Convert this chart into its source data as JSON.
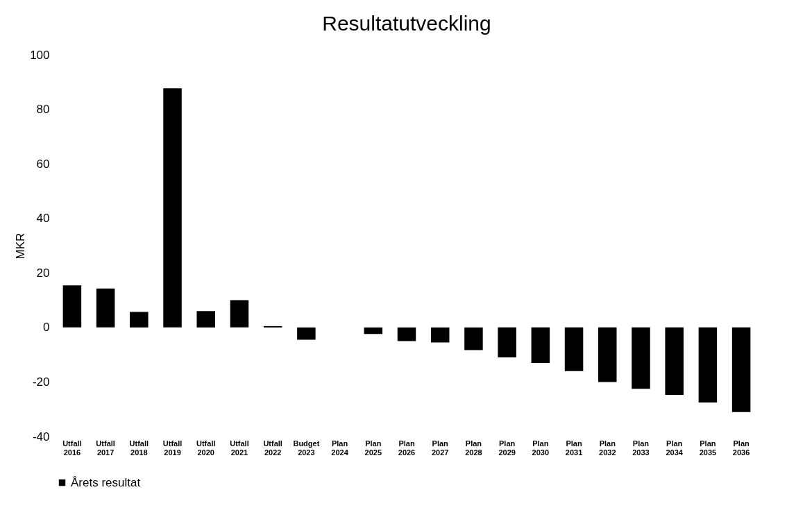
{
  "chart_data": {
    "type": "bar",
    "title": "Resultatutveckling",
    "ylabel": "MKR",
    "categories": [
      "Utfall 2016",
      "Utfall 2017",
      "Utfall 2018",
      "Utfall 2019",
      "Utfall 2020",
      "Utfall 2021",
      "Utfall 2022",
      "Budget 2023",
      "Plan 2024",
      "Plan 2025",
      "Plan 2026",
      "Plan 2027",
      "Plan 2028",
      "Plan 2029",
      "Plan 2030",
      "Plan 2031",
      "Plan 2032",
      "Plan 2033",
      "Plan 2034",
      "Plan 2035",
      "Plan 2036"
    ],
    "series": [
      {
        "name": "Årets resultat",
        "color": "#000000",
        "values": [
          15.4,
          14.3,
          5.7,
          87.7,
          6,
          10,
          0.5,
          -4.5,
          0,
          -2.4,
          -5,
          -5.5,
          -8.3,
          -11,
          -13,
          -16,
          -20,
          -22.5,
          -24.7,
          -27.5,
          -31
        ]
      }
    ],
    "ylim": [
      -40,
      100
    ],
    "yticks": [
      -40,
      -20,
      0,
      20,
      40,
      60,
      80,
      100
    ],
    "grid": false,
    "legend": "bottom"
  }
}
